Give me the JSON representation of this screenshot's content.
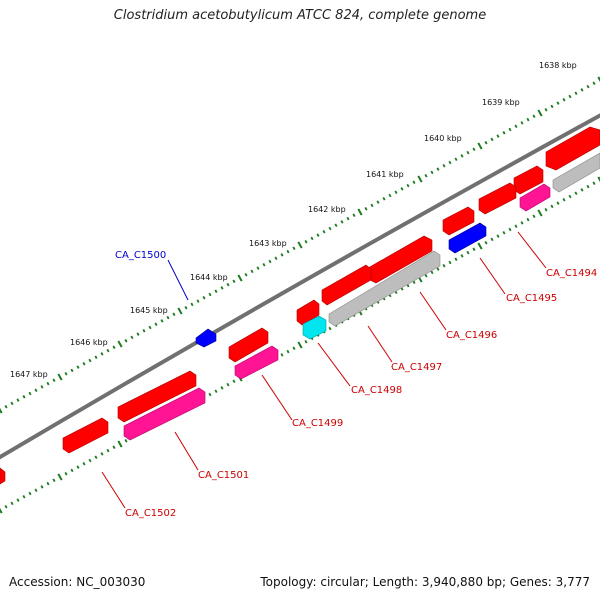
{
  "title": "Clostridium acetobutylicum ATCC 824, complete genome",
  "footer": {
    "accession": "Accession: NC_003030",
    "summary": "Topology: circular; Length: 3,940,880 bp; Genes: 3,777"
  },
  "colors": {
    "forward_gene": "#ff0000",
    "reverse_gene": "#ff1493",
    "gray_gene": "#bdbdbd",
    "blue_gene": "#0000ff",
    "cyan_gene": "#00e5ee",
    "label_red": "#cc0000",
    "label_blue": "#0000cc",
    "tick_green": "#1a7a1a",
    "backbone": "#707070"
  },
  "scale": {
    "unit": "kbp",
    "ticks": [
      {
        "label": "1638 kbp"
      },
      {
        "label": "1639 kbp"
      },
      {
        "label": "1640 kbp"
      },
      {
        "label": "1641 kbp"
      },
      {
        "label": "1642 kbp"
      },
      {
        "label": "1643 kbp"
      },
      {
        "label": "1644 kbp"
      },
      {
        "label": "1645 kbp"
      },
      {
        "label": "1646 kbp"
      },
      {
        "label": "1647 kbp"
      }
    ]
  },
  "gene_labels": [
    {
      "text": "CA_C1494",
      "color": "red"
    },
    {
      "text": "CA_C1495",
      "color": "red"
    },
    {
      "text": "CA_C1496",
      "color": "red"
    },
    {
      "text": "CA_C1497",
      "color": "red"
    },
    {
      "text": "CA_C1498",
      "color": "red"
    },
    {
      "text": "CA_C1499",
      "color": "red"
    },
    {
      "text": "CA_C1500",
      "color": "blue"
    },
    {
      "text": "CA_C1501",
      "color": "red"
    },
    {
      "text": "CA_C1502",
      "color": "red"
    }
  ]
}
